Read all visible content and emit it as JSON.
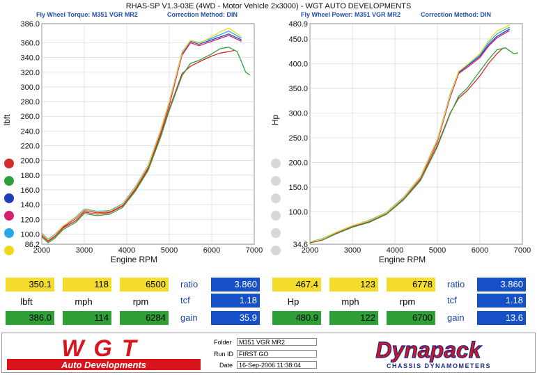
{
  "header": {
    "title": "RHAS-SP V1.3-03E  (4WD - Motor Vehicle 2x3000) - WGT AUTO DEVELOPMENTS",
    "left_subtitle": "Fly Wheel Torque: M351 VGR MR2",
    "left_method": "Correction Method: DIN",
    "right_subtitle": "Fly Wheel Power: M351 VGR MR2",
    "right_method": "Correction Method: DIN"
  },
  "chart_data": [
    {
      "type": "line",
      "ylabel": "lbft",
      "xlabel": "Engine RPM",
      "xlim": [
        2000,
        7000
      ],
      "ylim": [
        86.2,
        386.0
      ],
      "xticks": [
        "2000",
        "3000",
        "4000",
        "5000",
        "6000",
        "7000"
      ],
      "yticks": [
        "386.0",
        "360.0",
        "340.0",
        "320.0",
        "300.0",
        "280.0",
        "260.0",
        "240.0",
        "220.0",
        "200.0",
        "180.0",
        "160.0",
        "140.0",
        "120.0",
        "100.0",
        "86.2"
      ],
      "grid": true,
      "series": [
        {
          "color": "#d42a2a",
          "x": [
            2000,
            2150,
            2300,
            2500,
            2800,
            3000,
            3300,
            3600,
            3900,
            4200,
            4500,
            4800,
            5000,
            5300,
            5500,
            5700,
            6000,
            6200,
            6400,
            6550
          ],
          "y": [
            98,
            90,
            96,
            108,
            118,
            130,
            127,
            129,
            138,
            160,
            188,
            235,
            270,
            318,
            328,
            334,
            342,
            346,
            348,
            350
          ]
        },
        {
          "color": "#2fa038",
          "x": [
            2000,
            2150,
            2300,
            2500,
            2800,
            3000,
            3300,
            3600,
            3900,
            4200,
            4500,
            4800,
            5000,
            5300,
            5500,
            5700,
            6000,
            6200,
            6400,
            6600,
            6800,
            6900
          ],
          "y": [
            96,
            88,
            94,
            106,
            116,
            128,
            125,
            127,
            136,
            158,
            186,
            232,
            268,
            315,
            332,
            336,
            345,
            352,
            354,
            348,
            320,
            316
          ]
        },
        {
          "color": "#1f3fb8",
          "x": [
            2000,
            2150,
            2300,
            2500,
            2800,
            3000,
            3300,
            3600,
            3900,
            4200,
            4500,
            4800,
            5000,
            5300,
            5500,
            5700,
            6000,
            6200,
            6400,
            6700
          ],
          "y": [
            100,
            92,
            98,
            110,
            122,
            133,
            130,
            131,
            140,
            163,
            192,
            240,
            278,
            345,
            362,
            358,
            364,
            368,
            372,
            364
          ]
        },
        {
          "color": "#d6206e",
          "x": [
            2000,
            2150,
            2300,
            2500,
            2800,
            3000,
            3300,
            3600,
            3900,
            4200,
            4500,
            4800,
            5000,
            5300,
            5500,
            5700,
            6000,
            6200,
            6400,
            6700
          ],
          "y": [
            99,
            91,
            97,
            109,
            121,
            132,
            129,
            130,
            139,
            162,
            190,
            238,
            275,
            343,
            360,
            356,
            362,
            366,
            370,
            362
          ]
        },
        {
          "color": "#29a8e8",
          "x": [
            2000,
            2150,
            2300,
            2500,
            2800,
            3000,
            3300,
            3600,
            3900,
            4200,
            4500,
            4800,
            5000,
            5300,
            5500,
            5700,
            6000,
            6200,
            6400,
            6700
          ],
          "y": [
            101,
            93,
            99,
            111,
            123,
            134,
            131,
            132,
            141,
            164,
            193,
            242,
            280,
            347,
            363,
            360,
            366,
            371,
            376,
            366
          ]
        },
        {
          "color": "#f0d820",
          "x": [
            2000,
            2150,
            2300,
            2500,
            2800,
            3000,
            3300,
            3600,
            3900,
            4200,
            4500,
            4800,
            5000,
            5300,
            5500,
            5700,
            6000,
            6200,
            6400,
            6700
          ],
          "y": [
            100,
            92,
            98,
            111,
            122,
            133,
            130,
            131,
            140,
            163,
            192,
            241,
            279,
            346,
            363,
            359,
            368,
            375,
            380,
            368
          ]
        }
      ]
    },
    {
      "type": "line",
      "ylabel": "Hp",
      "xlabel": "Engine RPM",
      "xlim": [
        2000,
        7000
      ],
      "ylim": [
        34.6,
        480.9
      ],
      "xticks": [
        "2000",
        "3000",
        "4000",
        "5000",
        "6000",
        "7000"
      ],
      "yticks": [
        "480.9",
        "450.0",
        "400.0",
        "350.0",
        "300.0",
        "250.0",
        "200.0",
        "150.0",
        "100.0",
        "34.6"
      ],
      "grid": true,
      "series": [
        {
          "color": "#d42a2a",
          "x": [
            2000,
            2300,
            2600,
            3000,
            3400,
            3800,
            4200,
            4600,
            5000,
            5300,
            5500,
            5700,
            6000,
            6200,
            6400,
            6550
          ],
          "y": [
            38,
            44,
            56,
            70,
            80,
            96,
            125,
            165,
            235,
            300,
            330,
            345,
            375,
            400,
            420,
            432
          ]
        },
        {
          "color": "#2fa038",
          "x": [
            2000,
            2300,
            2600,
            3000,
            3400,
            3800,
            4200,
            4600,
            5000,
            5300,
            5500,
            5700,
            6000,
            6200,
            6400,
            6600,
            6800,
            6900
          ],
          "y": [
            37,
            43,
            55,
            69,
            79,
            95,
            124,
            163,
            232,
            298,
            334,
            350,
            385,
            408,
            428,
            432,
            420,
            422
          ]
        },
        {
          "color": "#1f3fb8",
          "x": [
            2000,
            2300,
            2600,
            3000,
            3400,
            3800,
            4200,
            4600,
            5000,
            5300,
            5500,
            5700,
            6000,
            6200,
            6400,
            6700
          ],
          "y": [
            39,
            45,
            58,
            72,
            82,
            98,
            128,
            170,
            245,
            335,
            382,
            395,
            415,
            438,
            455,
            470
          ]
        },
        {
          "color": "#d6206e",
          "x": [
            2000,
            2300,
            2600,
            3000,
            3400,
            3800,
            4200,
            4600,
            5000,
            5300,
            5500,
            5700,
            6000,
            6200,
            6400,
            6700
          ],
          "y": [
            38,
            44,
            57,
            71,
            81,
            97,
            127,
            168,
            242,
            332,
            380,
            392,
            412,
            435,
            452,
            467
          ]
        },
        {
          "color": "#29a8e8",
          "x": [
            2000,
            2300,
            2600,
            3000,
            3400,
            3800,
            4200,
            4600,
            5000,
            5300,
            5500,
            5700,
            6000,
            6200,
            6400,
            6700
          ],
          "y": [
            39,
            46,
            58,
            72,
            83,
            99,
            129,
            171,
            247,
            338,
            384,
            397,
            418,
            442,
            460,
            474
          ]
        },
        {
          "color": "#f0d820",
          "x": [
            2000,
            2300,
            2600,
            3000,
            3400,
            3800,
            4200,
            4600,
            5000,
            5300,
            5500,
            5700,
            6000,
            6200,
            6400,
            6700
          ],
          "y": [
            39,
            45,
            58,
            72,
            82,
            98,
            128,
            170,
            246,
            336,
            384,
            398,
            420,
            446,
            466,
            478
          ]
        }
      ]
    }
  ],
  "legend_dots": {
    "left": [
      "#d42a2a",
      "#2fa038",
      "#1f3fb8",
      "#d6206e",
      "#29a8e8",
      "#f0d820"
    ],
    "right": [
      "#d8d8d8",
      "#d8d8d8",
      "#d8d8d8",
      "#d8d8d8",
      "#d8d8d8",
      "#d8d8d8"
    ]
  },
  "readouts": {
    "left": {
      "row1": [
        "350.1",
        "118",
        "6500"
      ],
      "row2": [
        "lbft",
        "mph",
        "rpm"
      ],
      "row3": [
        "386.0",
        "114",
        "6284"
      ],
      "ratio_label": "ratio",
      "ratio": "3.860",
      "tcf_label": "tcf",
      "tcf": "1.18",
      "gain_label": "gain",
      "gain": "35.9"
    },
    "right": {
      "row1": [
        "467.4",
        "123",
        "6778"
      ],
      "row2": [
        "Hp",
        "mph",
        "rpm"
      ],
      "row3": [
        "480.9",
        "122",
        "6700"
      ],
      "ratio_label": "ratio",
      "ratio": "3.860",
      "tcf_label": "tcf",
      "tcf": "1.18",
      "gain_label": "gain",
      "gain": "13.6"
    }
  },
  "footer": {
    "logo_main": "WGT",
    "logo_sub": "Auto Developments",
    "folder_label": "Folder",
    "folder": "M351 VGR MR2",
    "runid_label": "Run ID",
    "runid": "FIRST GO",
    "date_label": "Date",
    "date": "16-Sep-2006  11:38:04",
    "brand": "Dynapack",
    "brand_sub": "CHASSIS DYNAMOMETERS"
  },
  "colors": {
    "accent_blue": "#1650c8",
    "yellow": "#f3dc2b",
    "green": "#2fa038",
    "logo_red": "#d8141c"
  }
}
